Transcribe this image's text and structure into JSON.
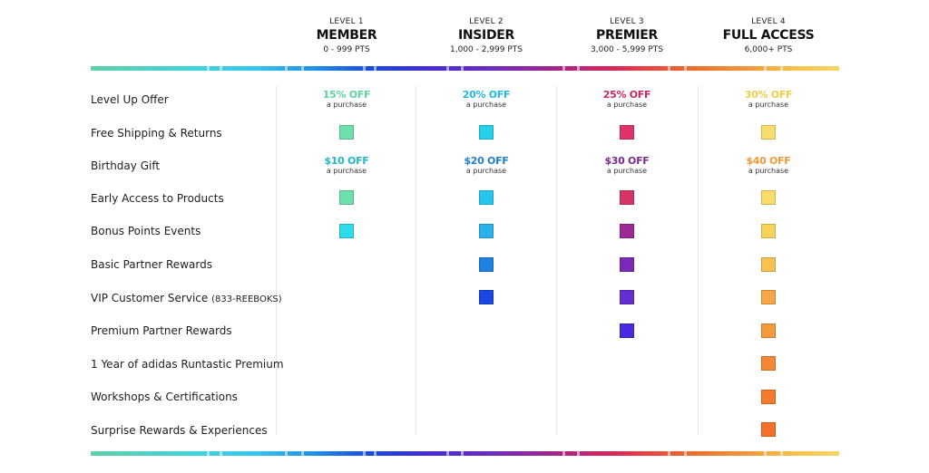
{
  "levels": [
    {
      "level": "LEVEL 1",
      "name": "MEMBER",
      "points": "0 - 999 PTS"
    },
    {
      "level": "LEVEL 2",
      "name": "INSIDER",
      "points": "1,000 - 2,999 PTS"
    },
    {
      "level": "LEVEL 3",
      "name": "PREMIER",
      "points": "3,000 - 5,999 PTS"
    },
    {
      "level": "LEVEL 4",
      "name": "FULL ACCESS",
      "points": "6,000+ PTS"
    }
  ],
  "features": [
    {
      "label": "Level Up Offer"
    },
    {
      "label": "Free Shipping & Returns"
    },
    {
      "label": "Birthday Gift"
    },
    {
      "label": "Early Access to Products"
    },
    {
      "label": "Bonus Points Events"
    },
    {
      "label": "Basic Partner Rewards"
    },
    {
      "label": "VIP Customer Service",
      "suffix": "(833-REEBOKS)"
    },
    {
      "label": "Premium Partner Rewards"
    },
    {
      "label": "1 Year of adidas Runtastic Premium"
    },
    {
      "label": "Workshops & Certifications"
    },
    {
      "label": "Surprise Rewards & Experiences"
    }
  ],
  "level_up_offers": [
    {
      "amount": "15% OFF",
      "sub": "a purchase",
      "color": "#5fd39e"
    },
    {
      "amount": "20% OFF",
      "sub": "a purchase",
      "color": "#22b8e8"
    },
    {
      "amount": "25% OFF",
      "sub": "a purchase",
      "color": "#c7285f"
    },
    {
      "amount": "30% OFF",
      "sub": "a purchase",
      "color": "#f2cc4a"
    }
  ],
  "birthday_gifts": [
    {
      "amount": "$10 OFF",
      "sub": "a purchase",
      "color": "#27b5c9"
    },
    {
      "amount": "$20 OFF",
      "sub": "a purchase",
      "color": "#1d7fd0"
    },
    {
      "amount": "$30 OFF",
      "sub": "a purchase",
      "color": "#7b2a8f"
    },
    {
      "amount": "$40 OFF",
      "sub": "a purchase",
      "color": "#f29a3a"
    }
  ],
  "included_colors": [
    [
      "#6ee0ac",
      "#24d0ea",
      "#e0336a",
      "#f9dd6c"
    ],
    [
      null,
      null,
      null,
      null
    ],
    [
      "#6ee0ac",
      "#25c6ee",
      "#d63466",
      "#f9dc69"
    ],
    [
      "#2ddbe9",
      "#27b2ea",
      "#9b2a96",
      "#f8d35c"
    ],
    [
      null,
      "#1e82e2",
      "#7a2ab8",
      "#f8c252"
    ],
    [
      null,
      "#1a48e0",
      "#6230d2",
      "#f7a645"
    ],
    [
      null,
      null,
      "#4a2ae0",
      "#f59a3c"
    ],
    [
      null,
      null,
      null,
      "#f48634"
    ],
    [
      null,
      null,
      null,
      "#f47b2e"
    ],
    [
      null,
      null,
      null,
      "#f3702a"
    ]
  ],
  "colors": {
    "text": "#1e1e1e",
    "divider": "#e6e6e6"
  }
}
